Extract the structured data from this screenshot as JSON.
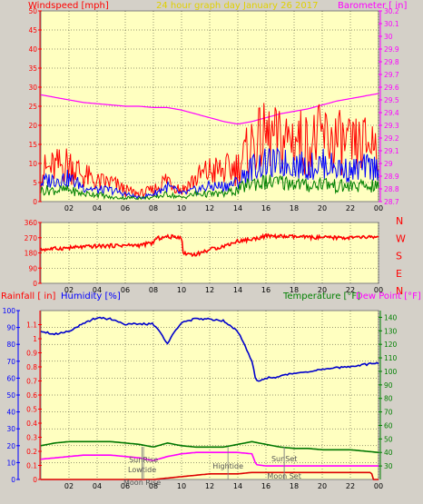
{
  "chart_data": [
    {
      "type": "line",
      "title": "24 hour graph day  January 26 2017",
      "ylabel_left": "Windspeed [mph]",
      "ylabel_right": "Barometer [ in]",
      "x_ticks": [
        "02",
        "04",
        "06",
        "08",
        "10",
        "12",
        "14",
        "16",
        "18",
        "20",
        "22",
        "00"
      ],
      "xlim": [
        0,
        24
      ],
      "ylim_left": [
        0,
        50
      ],
      "yticks_left": [
        "0",
        "5",
        "10",
        "15",
        "20",
        "25",
        "30",
        "35",
        "40",
        "45",
        "50"
      ],
      "ylim_right": [
        28.7,
        30.2
      ],
      "yticks_right": [
        "28.7",
        "28.8",
        "28.9",
        "29",
        "29.1",
        "29.2",
        "29.3",
        "29.4",
        "29.5",
        "29.6",
        "29.7",
        "29.8",
        "29.9",
        "30",
        "30.1",
        "30.2"
      ],
      "grid": true,
      "series": [
        {
          "role": "barometer",
          "color": "#ff00ff",
          "x": [
            0,
            1,
            2,
            3,
            4,
            5,
            6,
            7,
            8,
            9,
            10,
            11,
            12,
            13,
            14,
            15,
            16,
            17,
            18,
            19,
            20,
            21,
            22,
            23,
            24
          ],
          "y": [
            29.54,
            29.52,
            29.5,
            29.48,
            29.47,
            29.46,
            29.45,
            29.45,
            29.44,
            29.44,
            29.42,
            29.39,
            29.36,
            29.33,
            29.31,
            29.33,
            29.36,
            29.39,
            29.41,
            29.43,
            29.46,
            29.49,
            29.51,
            29.53,
            29.55
          ]
        },
        {
          "role": "gust",
          "color": "#ff0000",
          "x": [
            0,
            1,
            2,
            3,
            4,
            5,
            6,
            7,
            8,
            9,
            10,
            11,
            12,
            13,
            14,
            15,
            16,
            17,
            18,
            19,
            20,
            21,
            22,
            23,
            24
          ],
          "y": [
            8,
            9,
            10,
            7,
            5,
            5,
            3,
            2,
            3,
            6,
            3,
            6,
            8,
            8,
            9,
            15,
            17,
            16,
            17,
            15,
            17,
            16,
            14,
            15,
            16
          ]
        },
        {
          "role": "average",
          "color": "#0000ff",
          "x": [
            0,
            1,
            2,
            3,
            4,
            5,
            6,
            7,
            8,
            9,
            10,
            11,
            12,
            13,
            14,
            15,
            16,
            17,
            18,
            19,
            20,
            21,
            22,
            23,
            24
          ],
          "y": [
            5,
            6,
            6,
            4,
            3,
            3,
            2,
            1,
            2,
            4,
            2,
            3,
            4,
            4,
            5,
            9,
            10,
            10,
            10,
            9,
            10,
            9,
            8,
            9,
            9
          ]
        },
        {
          "role": "lull",
          "color": "#008000",
          "x": [
            0,
            1,
            2,
            3,
            4,
            5,
            6,
            7,
            8,
            9,
            10,
            11,
            12,
            13,
            14,
            15,
            16,
            17,
            18,
            19,
            20,
            21,
            22,
            23,
            24
          ],
          "y": [
            3,
            3,
            3,
            2,
            2,
            1,
            1,
            1,
            1,
            2,
            1,
            2,
            2,
            2,
            3,
            5,
            5,
            5,
            5,
            4,
            5,
            4,
            4,
            4,
            4
          ]
        }
      ]
    },
    {
      "type": "line",
      "ylabel_right": "N W S E N",
      "x_ticks": [
        "02",
        "04",
        "06",
        "08",
        "10",
        "12",
        "14",
        "16",
        "18",
        "20",
        "22",
        "00"
      ],
      "xlim": [
        0,
        24
      ],
      "ylim": [
        0,
        360
      ],
      "yticks": [
        "0",
        "90",
        "180",
        "270",
        "360"
      ],
      "grid": true,
      "series": [
        {
          "role": "wind direction",
          "color": "#ff0000",
          "x": [
            0,
            2,
            4,
            6,
            7,
            8,
            8.2,
            9,
            10,
            10.1,
            11,
            12,
            13,
            14,
            15,
            16,
            18,
            20,
            22,
            24
          ],
          "y": [
            200,
            210,
            220,
            225,
            225,
            240,
            265,
            275,
            275,
            180,
            170,
            200,
            220,
            250,
            260,
            280,
            275,
            270,
            270,
            275
          ]
        }
      ]
    },
    {
      "type": "line",
      "ylabel_left_1": "Rainfall [ in]",
      "ylabel_left_2": "Humidity [%]",
      "ylabel_right_1": "Temperature [°F]",
      "ylabel_right_2": "Dew Point [°F]",
      "x_ticks": [
        "02",
        "04",
        "06",
        "08",
        "10",
        "12",
        "14",
        "16",
        "18",
        "20",
        "22",
        "00"
      ],
      "xlim": [
        0,
        24
      ],
      "ylim_humidity": [
        0,
        100
      ],
      "yticks_humidity": [
        "0",
        "10",
        "20",
        "30",
        "40",
        "50",
        "60",
        "70",
        "80",
        "90",
        "100"
      ],
      "ylim_rain": [
        0,
        1.2
      ],
      "yticks_rain": [
        "0",
        "0.1",
        "0.2",
        "0.3",
        "0.4",
        "0.5",
        "0.6",
        "0.7",
        "0.8",
        "0.9",
        "1",
        "1.1"
      ],
      "ylim_temp": [
        20,
        145
      ],
      "yticks_temp": [
        "30",
        "40",
        "50",
        "60",
        "70",
        "80",
        "90",
        "100",
        "110",
        "120",
        "130",
        "140"
      ],
      "grid": true,
      "series": [
        {
          "role": "humidity",
          "color": "#0000cc",
          "x": [
            0,
            1,
            2,
            3,
            4,
            5,
            6,
            7,
            8,
            8.5,
            9,
            9.5,
            10,
            11,
            12,
            13,
            14,
            15,
            15.3,
            16,
            17,
            18,
            19,
            20,
            21,
            22,
            23,
            24
          ],
          "y": [
            88,
            86,
            88,
            92,
            96,
            95,
            92,
            92,
            92,
            87,
            80,
            88,
            93,
            95,
            95,
            94,
            88,
            70,
            58,
            60,
            61,
            63,
            64,
            65,
            66,
            67,
            68,
            69
          ]
        },
        {
          "role": "temperature",
          "color": "#007700",
          "x": [
            0,
            1,
            2,
            3,
            4,
            5,
            6,
            7,
            8,
            9,
            10,
            11,
            12,
            13,
            14,
            15,
            16,
            17,
            18,
            19,
            20,
            21,
            22,
            23,
            24
          ],
          "y": [
            45,
            47,
            48,
            48,
            48,
            48,
            47,
            46,
            44,
            47,
            45,
            44,
            44,
            44,
            46,
            48,
            46,
            44,
            43,
            43,
            42,
            42,
            42,
            41,
            40
          ]
        },
        {
          "role": "dew point",
          "color": "#ff00ff",
          "x": [
            0,
            1,
            2,
            3,
            4,
            5,
            6,
            7,
            8,
            9,
            10,
            11,
            12,
            13,
            14,
            15,
            15.3,
            16,
            17,
            18,
            19,
            20,
            21,
            22,
            23,
            24
          ],
          "y": [
            35,
            36,
            37,
            38,
            38,
            38,
            37,
            36,
            34,
            37,
            39,
            40,
            40,
            40,
            40,
            39,
            31,
            30,
            30,
            30,
            30,
            30,
            30,
            30,
            30,
            30
          ]
        },
        {
          "role": "rainfall",
          "color": "#dd0000",
          "x": [
            0,
            8,
            9,
            10,
            11,
            12,
            13,
            14,
            15,
            15.5,
            23.5,
            23.6,
            24
          ],
          "y": [
            0,
            0,
            0.01,
            0.02,
            0.03,
            0.04,
            0.04,
            0.04,
            0.05,
            0.05,
            0.05,
            0,
            0
          ]
        }
      ],
      "annotations": [
        {
          "text": "Lowtide",
          "x": 7.2
        },
        {
          "text": "SunRise",
          "x": 7.3
        },
        {
          "text": "Moon Rise",
          "x": 7.2
        },
        {
          "text": "Hightide",
          "x": 13.3
        },
        {
          "text": "SunSet",
          "x": 17.3
        },
        {
          "text": "Moon Set",
          "x": 17.3
        }
      ]
    }
  ],
  "colors": {
    "plot_bg": "#ffffc0",
    "window_bg": "#d4d0c8",
    "axis_red": "#ff0000",
    "axis_magenta": "#ff00ff",
    "axis_blue": "#0000ff",
    "axis_green": "#008000",
    "title_yellow": "#e0d000"
  }
}
